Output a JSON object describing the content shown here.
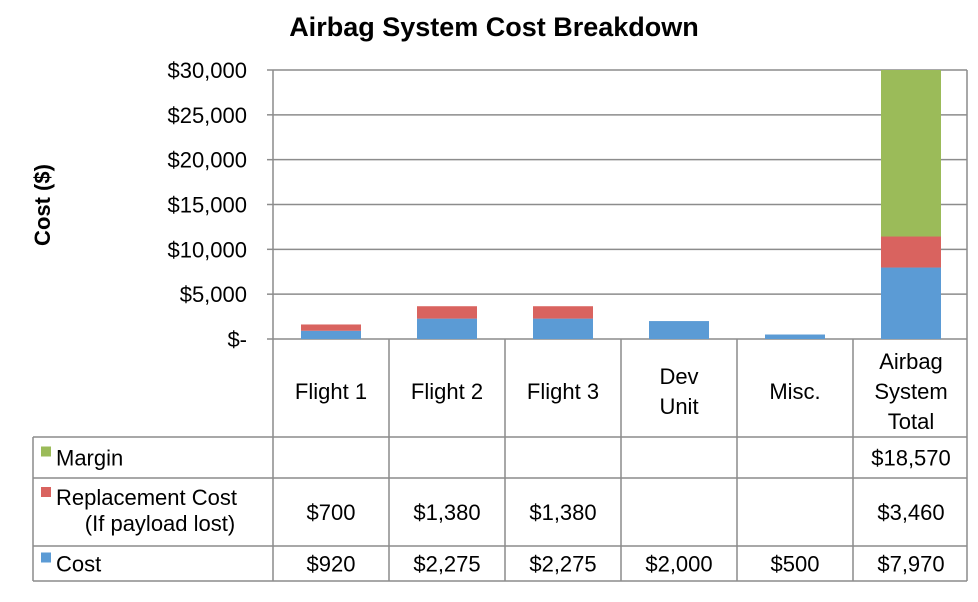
{
  "chart_data": {
    "type": "bar",
    "stacked": true,
    "title": "Airbag System Cost Breakdown",
    "ylabel": "Cost ($)",
    "ylim": [
      0,
      30000
    ],
    "yticks": [
      {
        "value": 30000,
        "label": "$30,000"
      },
      {
        "value": 25000,
        "label": "$25,000"
      },
      {
        "value": 20000,
        "label": "$20,000"
      },
      {
        "value": 15000,
        "label": "$15,000"
      },
      {
        "value": 10000,
        "label": "$10,000"
      },
      {
        "value": 5000,
        "label": "$5,000"
      },
      {
        "value": 0,
        "label": "$-"
      }
    ],
    "grid": true,
    "legend": "data-table",
    "categories": [
      [
        "Flight 1"
      ],
      [
        "Flight 2"
      ],
      [
        "Flight 3"
      ],
      [
        "Dev",
        "Unit"
      ],
      [
        "Misc."
      ],
      [
        "Airbag",
        "System",
        "Total"
      ]
    ],
    "series": [
      {
        "name": [
          "Cost"
        ],
        "color": "#5b9bd5",
        "values": [
          920,
          2275,
          2275,
          2000,
          500,
          7970
        ],
        "labels": [
          "$920",
          "$2,275",
          "$2,275",
          "$2,000",
          "$500",
          "$7,970"
        ]
      },
      {
        "name": [
          "Replacement Cost",
          "(If payload lost)"
        ],
        "color": "#d9635f",
        "values": [
          700,
          1380,
          1380,
          null,
          null,
          3460
        ],
        "labels": [
          "$700",
          "$1,380",
          "$1,380",
          "",
          "",
          "$3,460"
        ]
      },
      {
        "name": [
          "Margin"
        ],
        "color": "#9bbb59",
        "values": [
          null,
          null,
          null,
          null,
          null,
          18570
        ],
        "labels": [
          "",
          "",
          "",
          "",
          "",
          "$18,570"
        ]
      }
    ]
  }
}
